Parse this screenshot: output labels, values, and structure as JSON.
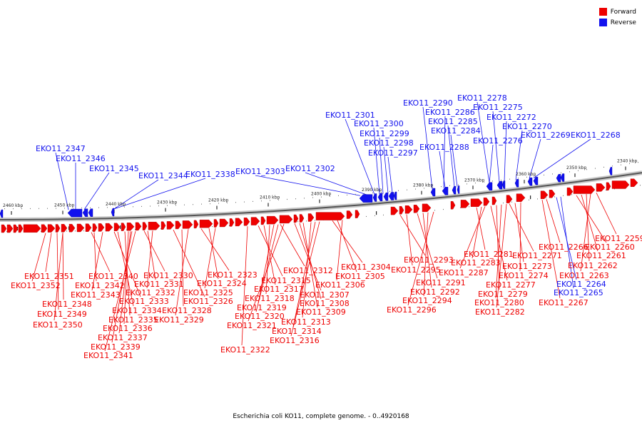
{
  "legend": {
    "forward": {
      "label": "Forward",
      "color": "#ee0000"
    },
    "reverse": {
      "label": "Reverse",
      "color": "#1111ee"
    }
  },
  "caption": "Escherichia coli KO11, complete genome. - 0..4920168",
  "scale": {
    "ticks": [
      "2460 kbp",
      "2450 kbp",
      "2440 kbp",
      "2430 kbp",
      "2420 kbp",
      "2410 kbp",
      "2400 kbp",
      "2390 kbp",
      "2380 kbp",
      "2370 kbp",
      "2360 kbp",
      "2350 kbp",
      "2340 kbp"
    ]
  },
  "reverse_labels": [
    "EKO11_2347",
    "EKO11_2346",
    "EKO11_2345",
    "EKO11_2344",
    "EKO11_2338",
    "EKO11_2303",
    "EKO11_2302",
    "EKO11_2301",
    "EKO11_2300",
    "EKO11_2299",
    "EKO11_2298",
    "EKO11_2297",
    "EKO11_2290",
    "EKO11_2286",
    "EKO11_2285",
    "EKO11_2284",
    "EKO11_2288",
    "EKO11_2278",
    "EKO11_2275",
    "EKO11_2272",
    "EKO11_2276",
    "EKO11_2270",
    "EKO11_2269",
    "EKO11_2268",
    "EKO11_2264",
    "EKO11_2265"
  ],
  "forward_labels": [
    "EKO11_2351",
    "EKO11_2352",
    "EKO11_2348",
    "EKO11_2349",
    "EKO11_2350",
    "EKO11_2340",
    "EKO11_2342",
    "EKO11_2343",
    "EKO11_2333",
    "EKO11_2334",
    "EKO11_2335",
    "EKO11_2336",
    "EKO11_2337",
    "EKO11_2339",
    "EKO11_2341",
    "EKO11_2330",
    "EKO11_2331",
    "EKO11_2332",
    "EKO11_2326",
    "EKO11_2328",
    "EKO11_2329",
    "EKO11_2323",
    "EKO11_2324",
    "EKO11_2325",
    "EKO11_2315",
    "EKO11_2317",
    "EKO11_2318",
    "EKO11_2319",
    "EKO11_2320",
    "EKO11_2321",
    "EKO11_2322",
    "EKO11_2312",
    "EKO11_2307",
    "EKO11_2308",
    "EKO11_2309",
    "EKO11_2313",
    "EKO11_2314",
    "EKO11_2316",
    "EKO11_2304",
    "EKO11_2305",
    "EKO11_2306",
    "EKO11_2293",
    "EKO11_2295",
    "EKO11_2291",
    "EKO11_2292",
    "EKO11_2294",
    "EKO11_2296",
    "EKO11_2281",
    "EKO11_2283",
    "EKO11_2287",
    "EKO11_2277",
    "EKO11_2279",
    "EKO11_2280",
    "EKO11_2282",
    "EKO11_2271",
    "EKO11_2273",
    "EKO11_2274",
    "EKO11_2266",
    "EKO11_2260",
    "EKO11_2259",
    "EKO11_2261",
    "EKO11_2262",
    "EKO11_2263",
    "EKO11_2267"
  ]
}
